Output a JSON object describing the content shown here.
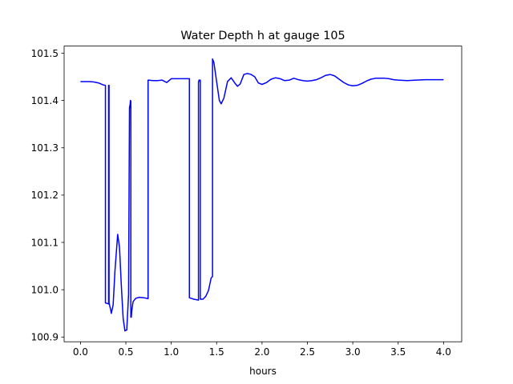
{
  "chart_data": {
    "type": "line",
    "title": "Water Depth h at gauge 105",
    "xlabel": "hours",
    "ylabel": "",
    "xlim": [
      -0.18,
      4.2
    ],
    "ylim": [
      100.89,
      101.515
    ],
    "xticks": [
      0.0,
      0.5,
      1.0,
      1.5,
      2.0,
      2.5,
      3.0,
      3.5,
      4.0
    ],
    "xtick_labels": [
      "0.0",
      "0.5",
      "1.0",
      "1.5",
      "2.0",
      "2.5",
      "3.0",
      "3.5",
      "4.0"
    ],
    "yticks": [
      100.9,
      101.0,
      101.1,
      101.2,
      101.3,
      101.4,
      101.5
    ],
    "ytick_labels": [
      "100.9",
      "101.0",
      "101.1",
      "101.2",
      "101.3",
      "101.4",
      "101.5"
    ],
    "grid": false,
    "legend": "none",
    "series": [
      {
        "color": "#0000ff",
        "x": [
          0.0,
          0.1,
          0.15,
          0.2,
          0.25,
          0.275,
          0.275,
          0.31,
          0.31,
          0.315,
          0.315,
          0.33,
          0.34,
          0.36,
          0.38,
          0.41,
          0.43,
          0.45,
          0.47,
          0.49,
          0.51,
          0.53,
          0.54,
          0.545,
          0.545,
          0.55,
          0.555,
          0.555,
          0.56,
          0.565,
          0.58,
          0.61,
          0.65,
          0.7,
          0.745,
          0.745,
          0.8,
          0.85,
          0.9,
          0.95,
          1.0,
          1.05,
          1.1,
          1.15,
          1.2,
          1.2,
          1.25,
          1.3,
          1.3,
          1.305,
          1.305,
          1.32,
          1.32,
          1.35,
          1.38,
          1.41,
          1.44,
          1.455,
          1.455,
          1.47,
          1.5,
          1.53,
          1.55,
          1.58,
          1.62,
          1.66,
          1.7,
          1.73,
          1.76,
          1.8,
          1.84,
          1.88,
          1.92,
          1.96,
          2.0,
          2.05,
          2.1,
          2.15,
          2.2,
          2.25,
          2.3,
          2.35,
          2.4,
          2.45,
          2.5,
          2.55,
          2.6,
          2.65,
          2.7,
          2.75,
          2.8,
          2.85,
          2.9,
          2.95,
          3.0,
          3.05,
          3.1,
          3.15,
          3.2,
          3.25,
          3.3,
          3.35,
          3.4,
          3.45,
          3.5,
          3.6,
          3.7,
          3.8,
          3.9,
          4.0
        ],
        "y": [
          101.44,
          101.44,
          101.439,
          101.437,
          101.433,
          101.432,
          100.972,
          100.97,
          101.432,
          101.432,
          100.972,
          100.96,
          100.95,
          100.968,
          101.04,
          101.117,
          101.09,
          101.01,
          100.94,
          100.913,
          100.915,
          100.99,
          101.385,
          101.39,
          101.385,
          101.4,
          101.399,
          100.942,
          100.942,
          100.955,
          100.975,
          100.982,
          100.984,
          100.983,
          100.981,
          101.443,
          101.442,
          101.442,
          101.443,
          101.438,
          101.446,
          101.446,
          101.446,
          101.446,
          101.446,
          100.983,
          100.98,
          100.978,
          101.44,
          101.44,
          101.443,
          101.443,
          100.98,
          100.98,
          100.986,
          100.998,
          101.025,
          101.028,
          101.488,
          101.48,
          101.44,
          101.4,
          101.393,
          101.405,
          101.44,
          101.448,
          101.437,
          101.43,
          101.435,
          101.455,
          101.457,
          101.455,
          101.45,
          101.437,
          101.434,
          101.438,
          101.445,
          101.448,
          101.446,
          101.442,
          101.443,
          101.447,
          101.444,
          101.442,
          101.441,
          101.442,
          101.444,
          101.448,
          101.453,
          101.455,
          101.452,
          101.445,
          101.438,
          101.433,
          101.431,
          101.432,
          101.436,
          101.441,
          101.445,
          101.447,
          101.447,
          101.447,
          101.446,
          101.444,
          101.443,
          101.442,
          101.443,
          101.444,
          101.444,
          101.444
        ]
      }
    ]
  }
}
